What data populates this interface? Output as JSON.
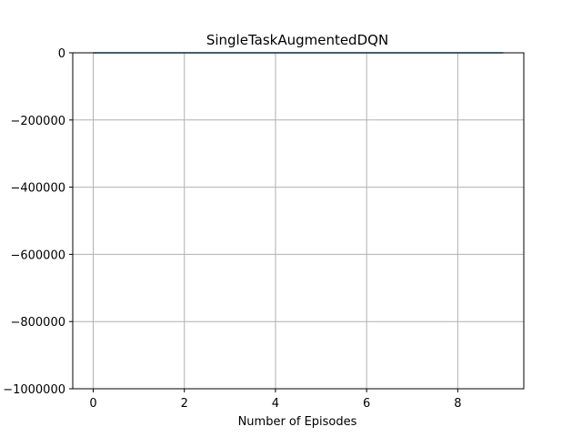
{
  "chart_data": {
    "type": "line",
    "title": "SingleTaskAugmentedDQN",
    "xlabel": "Number of Episodes",
    "ylabel": "",
    "xlim": [
      -0.45,
      9.45
    ],
    "ylim": [
      -1000000,
      0
    ],
    "xticks": [
      0,
      2,
      4,
      6,
      8
    ],
    "xtick_labels": [
      "0",
      "2",
      "4",
      "6",
      "8"
    ],
    "yticks": [
      0,
      -200000,
      -400000,
      -600000,
      -800000,
      -1000000
    ],
    "ytick_labels": [
      "0",
      "−200000",
      "−400000",
      "−600000",
      "−800000",
      "−1000000"
    ],
    "grid": true,
    "series": [
      {
        "x": [
          0,
          1,
          2,
          3,
          4,
          5,
          6,
          7,
          8,
          9
        ],
        "y": [
          0,
          0,
          0,
          0,
          0,
          0,
          0,
          0,
          0,
          0
        ],
        "color": "#1f77b4"
      }
    ]
  }
}
